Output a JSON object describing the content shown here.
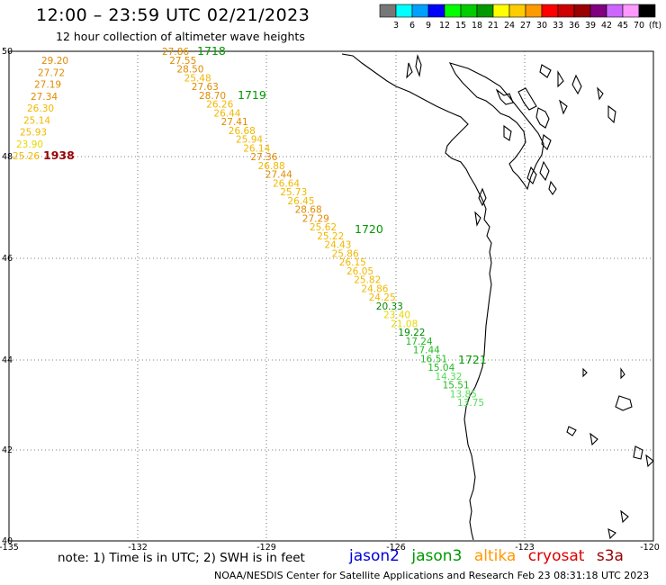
{
  "title": "12:00 – 23:59 UTC 02/21/2023",
  "subtitle": "12 hour collection of altimeter wave heights",
  "color_scale": {
    "labels": [
      "3",
      "6",
      "9",
      "12",
      "15",
      "18",
      "21",
      "24",
      "27",
      "30",
      "33",
      "36",
      "39",
      "42",
      "45",
      "70",
      "(ft)"
    ],
    "colors": [
      "#777777",
      "#00ffff",
      "#00a0ff",
      "#0000ff",
      "#00ff00",
      "#00cc00",
      "#009900",
      "#ffff00",
      "#ffcc00",
      "#ff9900",
      "#ff0000",
      "#cc0000",
      "#990000",
      "#800080",
      "#cc66ff",
      "#ff99ff",
      "#000000"
    ]
  },
  "axes": {
    "lon_labels": [
      "-135",
      "-132",
      "-129",
      "-126",
      "-123",
      "-120"
    ],
    "lat_labels": [
      "50",
      "48",
      "46",
      "44",
      "42",
      "40"
    ]
  },
  "satellites": [
    {
      "name": "jason2",
      "color": "#0000dd"
    },
    {
      "name": "jason3",
      "color": "#009900"
    },
    {
      "name": "altika",
      "color": "#ff9900"
    },
    {
      "name": "cryosat",
      "color": "#dd0000"
    },
    {
      "name": "s3a",
      "color": "#990000"
    }
  ],
  "pass_labels": [
    {
      "text": "1718",
      "color": "#009900"
    },
    {
      "text": "1719",
      "color": "#009900"
    },
    {
      "text": "1720",
      "color": "#009900"
    },
    {
      "text": "1721",
      "color": "#009900"
    },
    {
      "text": "1938",
      "color": "#990000"
    }
  ],
  "track_west": [
    "29.20",
    "27.72",
    "27.19",
    "27.34",
    "26.30",
    "25.14",
    "25.93",
    "23.90",
    "25.26"
  ],
  "track_main": [
    "27.86",
    "27.55",
    "28.50",
    "25.48",
    "27.63",
    "28.70",
    "26.26",
    "26.44",
    "27.41",
    "26.68",
    "25.94",
    "26.14",
    "27.36",
    "26.88",
    "27.44",
    "26.64",
    "25.73",
    "26.45",
    "28.68",
    "27.29",
    "25.62",
    "25.22",
    "24.43",
    "25.86",
    "26.15",
    "26.05",
    "25.82",
    "24.86",
    "24.25",
    "20.33",
    "23.40",
    "21.08",
    "19.22",
    "17.24",
    "17.44",
    "16.51",
    "15.04",
    "14.32",
    "15.51",
    "13.85",
    "13.75"
  ],
  "note": "note: 1) Time is in UTC; 2) SWH is in feet",
  "credit": "NOAA/NESDIS Center for Satellite Applications and Research    Feb 23 08:31:18 UTC 2023"
}
